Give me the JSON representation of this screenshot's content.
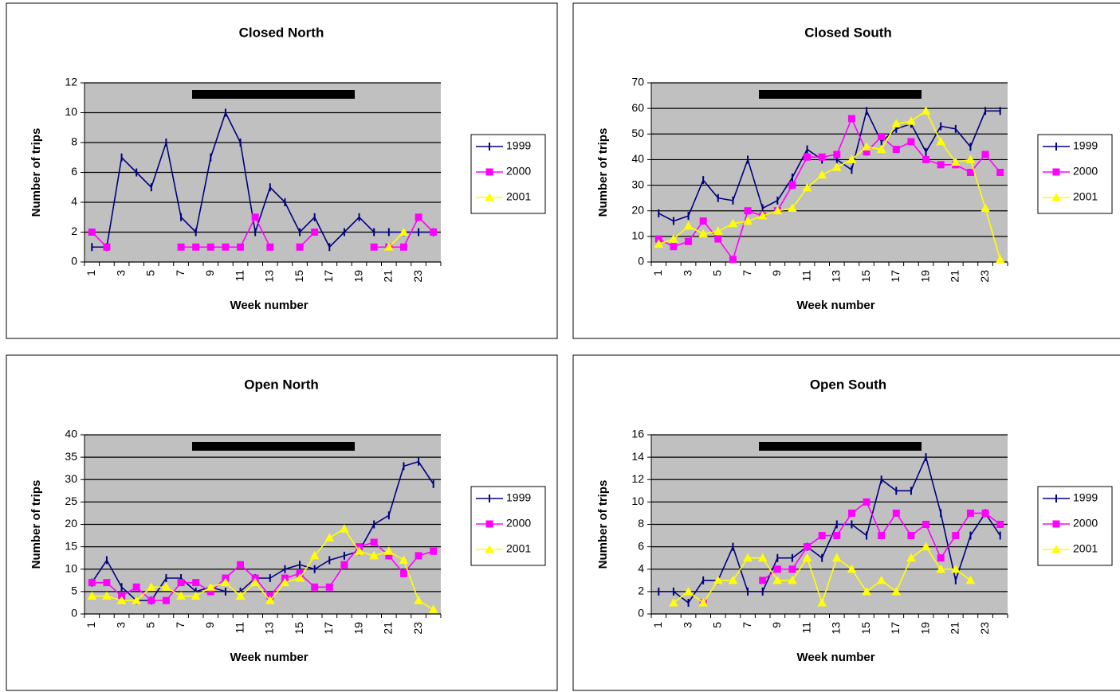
{
  "chart_data": [
    {
      "type": "line",
      "title": "Closed North",
      "x_label": "Week number",
      "y_label": "Number of trips",
      "categories": [
        1,
        null,
        3,
        null,
        5,
        null,
        7,
        null,
        9,
        null,
        11,
        null,
        13,
        null,
        15,
        null,
        17,
        null,
        19,
        null,
        21,
        null,
        23,
        null
      ],
      "series": [
        {
          "name": "1999",
          "color": "#000080",
          "marker": "plus",
          "values": [
            1,
            1,
            7,
            6,
            5,
            8,
            3,
            2,
            7,
            10,
            8,
            2,
            5,
            4,
            2,
            3,
            1,
            2,
            3,
            2,
            2,
            2,
            2,
            2
          ]
        },
        {
          "name": "2000",
          "color": "#ff00ff",
          "marker": "square",
          "values": [
            2,
            1,
            null,
            null,
            null,
            null,
            1,
            1,
            1,
            1,
            1,
            3,
            1,
            null,
            1,
            2,
            null,
            null,
            null,
            1,
            1,
            1,
            3,
            2
          ]
        },
        {
          "name": "2001",
          "color": "#ffff00",
          "marker": "triangle",
          "values": [
            null,
            null,
            null,
            null,
            null,
            null,
            null,
            null,
            null,
            null,
            null,
            null,
            null,
            null,
            null,
            null,
            null,
            null,
            null,
            null,
            1,
            2,
            null,
            null
          ]
        }
      ],
      "ylim": [
        0,
        12
      ],
      "yticks": [
        0,
        2,
        4,
        6,
        8,
        10,
        12
      ],
      "grid": true,
      "legend": "right",
      "background": "#c0c0c0"
    },
    {
      "type": "line",
      "title": "Closed South",
      "x_label": "Week number",
      "y_label": "Number of trips",
      "categories": [
        1,
        null,
        3,
        null,
        5,
        null,
        7,
        null,
        9,
        null,
        11,
        null,
        13,
        null,
        15,
        null,
        17,
        null,
        19,
        null,
        21,
        null,
        23,
        null
      ],
      "series": [
        {
          "name": "1999",
          "color": "#000080",
          "marker": "plus",
          "values": [
            19,
            16,
            18,
            32,
            25,
            24,
            40,
            21,
            24,
            33,
            44,
            40,
            40,
            36,
            59,
            47,
            52,
            54,
            43,
            53,
            52,
            45,
            59,
            59
          ]
        },
        {
          "name": "2000",
          "color": "#ff00ff",
          "marker": "square",
          "values": [
            9,
            6,
            8,
            16,
            9,
            1,
            20,
            18,
            20,
            30,
            41,
            41,
            42,
            56,
            43,
            49,
            44,
            47,
            40,
            38,
            38,
            35,
            42,
            35
          ]
        },
        {
          "name": "2001",
          "color": "#ffff00",
          "marker": "triangle",
          "values": [
            7,
            9,
            14,
            11,
            12,
            15,
            16,
            18,
            20,
            21,
            29,
            34,
            37,
            40,
            45,
            44,
            54,
            55,
            59,
            47,
            39,
            40,
            21,
            1
          ]
        }
      ],
      "ylim": [
        0,
        70
      ],
      "yticks": [
        0,
        10,
        20,
        30,
        40,
        50,
        60,
        70
      ],
      "grid": true,
      "legend": "right",
      "background": "#c0c0c0"
    },
    {
      "type": "line",
      "title": "Open North",
      "x_label": "Week number",
      "y_label": "Number of trips",
      "categories": [
        1,
        null,
        3,
        null,
        5,
        null,
        7,
        null,
        9,
        null,
        11,
        null,
        13,
        null,
        15,
        null,
        17,
        null,
        19,
        null,
        21,
        null,
        23,
        null
      ],
      "series": [
        {
          "name": "1999",
          "color": "#000080",
          "marker": "plus",
          "values": [
            7,
            12,
            6,
            3,
            3,
            8,
            8,
            5,
            6,
            5,
            5,
            8,
            8,
            10,
            11,
            10,
            12,
            13,
            14,
            20,
            22,
            33,
            34,
            29
          ]
        },
        {
          "name": "2000",
          "color": "#ff00ff",
          "marker": "square",
          "values": [
            7,
            7,
            4,
            6,
            3,
            3,
            7,
            7,
            5,
            8,
            11,
            8,
            4,
            8,
            9,
            6,
            6,
            11,
            15,
            16,
            13,
            9,
            13,
            14
          ]
        },
        {
          "name": "2001",
          "color": "#ffff00",
          "marker": "triangle",
          "values": [
            4,
            4,
            3,
            3,
            6,
            6,
            4,
            4,
            6,
            7,
            4,
            7,
            3,
            7,
            8,
            13,
            17,
            19,
            14,
            13,
            14,
            12,
            3,
            1
          ]
        }
      ],
      "ylim": [
        0,
        40
      ],
      "yticks": [
        0,
        5,
        10,
        15,
        20,
        25,
        30,
        35,
        40
      ],
      "grid": true,
      "legend": "right",
      "background": "#c0c0c0"
    },
    {
      "type": "line",
      "title": "Open South",
      "x_label": "Week number",
      "y_label": "Number of trips",
      "categories": [
        1,
        null,
        3,
        null,
        5,
        null,
        7,
        null,
        9,
        null,
        11,
        null,
        13,
        null,
        15,
        null,
        17,
        null,
        19,
        null,
        21,
        null,
        23,
        null
      ],
      "series": [
        {
          "name": "1999",
          "color": "#000080",
          "marker": "plus",
          "values": [
            2,
            2,
            1,
            3,
            3,
            6,
            2,
            2,
            5,
            5,
            6,
            5,
            8,
            8,
            7,
            12,
            11,
            11,
            14,
            9,
            3,
            7,
            9,
            7
          ]
        },
        {
          "name": "2000",
          "color": "#ff00ff",
          "marker": "square",
          "values": [
            null,
            null,
            null,
            1,
            null,
            null,
            null,
            3,
            4,
            4,
            6,
            7,
            7,
            9,
            10,
            7,
            9,
            7,
            8,
            5,
            7,
            9,
            9,
            8
          ]
        },
        {
          "name": "2001",
          "color": "#ffff00",
          "marker": "triangle",
          "values": [
            null,
            1,
            2,
            1,
            3,
            3,
            5,
            5,
            3,
            3,
            5,
            1,
            5,
            4,
            2,
            3,
            2,
            5,
            6,
            4,
            4,
            3,
            null,
            null
          ]
        }
      ],
      "ylim": [
        0,
        16
      ],
      "yticks": [
        0,
        2,
        4,
        6,
        8,
        10,
        12,
        14,
        16
      ],
      "grid": true,
      "legend": "right",
      "background": "#c0c0c0"
    }
  ]
}
